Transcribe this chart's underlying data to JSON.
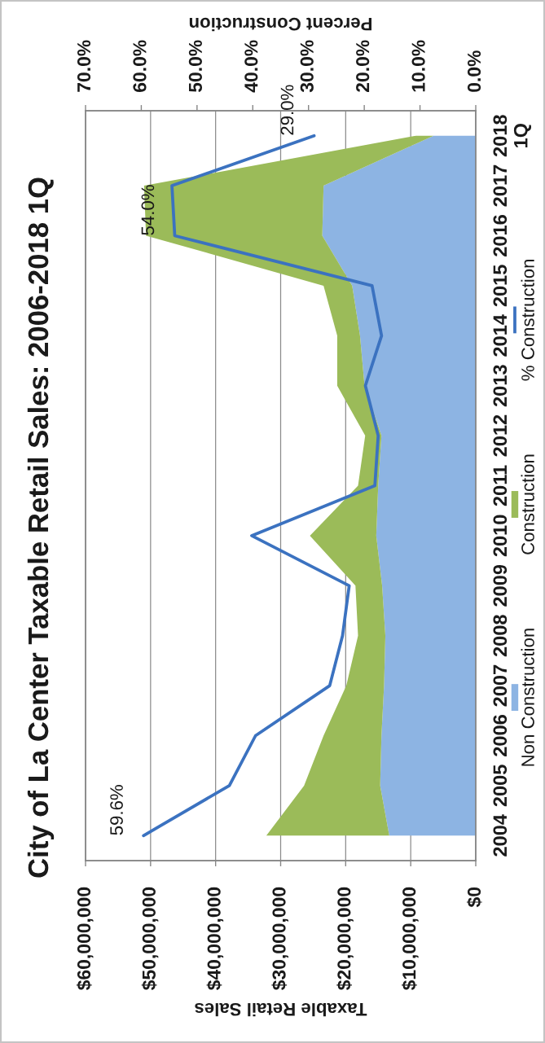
{
  "chart_data": {
    "type": "area",
    "orientation": "horizontal",
    "stacked": true,
    "title": "City of La Center Taxable Retail Sales: 2006-2018 1Q",
    "xlabel": "Taxable Retail Sales",
    "x2label": "Percent Construction",
    "categories": [
      "2018\n1Q",
      "2017",
      "2016",
      "2015",
      "2014",
      "2013",
      "2012",
      "2011",
      "2010",
      "2009",
      "2008",
      "2007",
      "2006",
      "2005",
      "2004"
    ],
    "series": [
      {
        "name": "Non Construction",
        "color": "#8db4e3",
        "values": [
          6500000,
          23400000,
          23600000,
          19000000,
          17800000,
          17100000,
          14500000,
          15000000,
          15300000,
          14400000,
          13900000,
          14100000,
          14500000,
          14700000,
          13300000
        ]
      },
      {
        "name": "Construction",
        "color": "#9bbb59",
        "values": [
          2700000,
          27600000,
          27100000,
          4400000,
          3500000,
          4200000,
          2500000,
          3100000,
          10200000,
          4100000,
          4200000,
          5800000,
          8900000,
          11700000,
          18900000
        ]
      },
      {
        "name": "% Construction",
        "type": "line",
        "axis": "x2",
        "color": "#3b72c0",
        "values": [
          29.0,
          54.5,
          54.0,
          18.6,
          16.9,
          19.8,
          17.5,
          18.1,
          40.2,
          22.7,
          23.9,
          26.2,
          39.5,
          44.2,
          59.6
        ],
        "value_labels": [
          "29.0%",
          null,
          "54.0%",
          null,
          null,
          null,
          null,
          null,
          null,
          null,
          null,
          null,
          null,
          null,
          "59.6%"
        ]
      }
    ],
    "xlim": [
      60000000,
      0
    ],
    "xticks": [
      {
        "value": 60000000,
        "label": "$60,000,000"
      },
      {
        "value": 50000000,
        "label": "$50,000,000"
      },
      {
        "value": 40000000,
        "label": "$40,000,000"
      },
      {
        "value": 30000000,
        "label": "$30,000,000"
      },
      {
        "value": 20000000,
        "label": "$20,000,000"
      },
      {
        "value": 10000000,
        "label": "$10,000,000"
      },
      {
        "value": 0,
        "label": "$0"
      }
    ],
    "x2lim": [
      70,
      0
    ],
    "x2ticks": [
      {
        "value": 70,
        "label": "70.0%"
      },
      {
        "value": 60,
        "label": "60.0%"
      },
      {
        "value": 50,
        "label": "50.0%"
      },
      {
        "value": 40,
        "label": "40.0%"
      },
      {
        "value": 30,
        "label": "30.0%"
      },
      {
        "value": 20,
        "label": "20.0%"
      },
      {
        "value": 10,
        "label": "10.0%"
      },
      {
        "value": 0,
        "label": "0.0%"
      }
    ],
    "grid": "x",
    "legend": "right"
  }
}
